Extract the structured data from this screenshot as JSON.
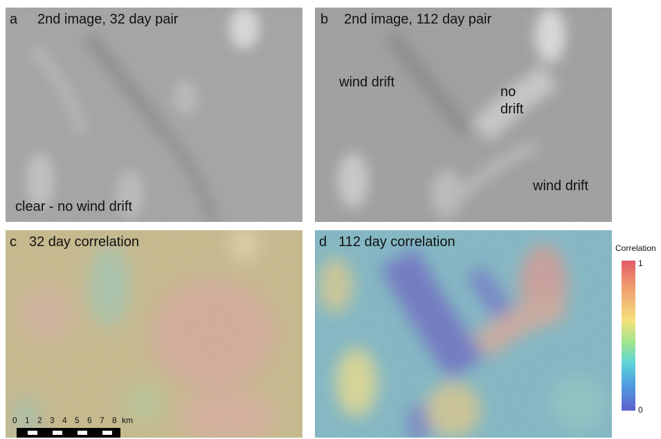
{
  "panels": {
    "a": {
      "letter": "a",
      "title": "2nd image, 32 day pair",
      "annotations": [
        "clear - no wind drift"
      ]
    },
    "b": {
      "letter": "b",
      "title": "2nd image, 112 day pair",
      "annotations": [
        "wind drift",
        "no\ndrift",
        "wind drift"
      ]
    },
    "c": {
      "letter": "c",
      "title": "32 day correlation"
    },
    "d": {
      "letter": "d",
      "title": "112 day correlation"
    }
  },
  "colorbar": {
    "title": "Correlation",
    "max_label": "1",
    "min_label": "0"
  },
  "scalebar": {
    "ticks": [
      "0",
      "1",
      "2",
      "3",
      "4",
      "5",
      "6",
      "7",
      "8"
    ],
    "unit": "km"
  },
  "colors": {
    "terrain_gray": "#9a9a9a",
    "corr_high": "#e35c66",
    "corr_mid": "#f4e27a",
    "corr_low": "#6060cf"
  }
}
